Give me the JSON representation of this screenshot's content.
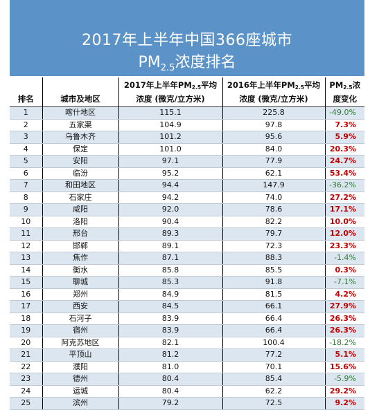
{
  "title": {
    "line1": "2017年上半年中国366座城市",
    "line2_prefix": "PM",
    "line2_sub": "2.5",
    "line2_suffix": "浓度排名"
  },
  "headers": {
    "rank": "排名",
    "city": "城市及地区",
    "col2017_line1_prefix": "2017年上半年PM",
    "col2017_line1_sub": "2.5",
    "col2017_line1_suffix": "平均",
    "col2017_line2": "浓度 (微克/立方米)",
    "col2016_line1_prefix": "2016年上半年PM",
    "col2016_line1_sub": "2.5",
    "col2016_line1_suffix": "平均",
    "col2016_line2": "浓度 (微克/立方米)",
    "change_line1_prefix": "PM",
    "change_line1_sub": "2.5",
    "change_line1_suffix": "浓",
    "change_line2": "度变化"
  },
  "rows": [
    {
      "rank": "1",
      "city": "喀什地区",
      "v2017": "115.1",
      "v2016": "225.8",
      "change": "-49.0%",
      "dir": "down"
    },
    {
      "rank": "2",
      "city": "五家渠",
      "v2017": "104.9",
      "v2016": "97.8",
      "change": "7.3%",
      "dir": "up"
    },
    {
      "rank": "3",
      "city": "乌鲁木齐",
      "v2017": "101.2",
      "v2016": "95.6",
      "change": "5.9%",
      "dir": "up"
    },
    {
      "rank": "4",
      "city": "保定",
      "v2017": "101.0",
      "v2016": "84.0",
      "change": "20.3%",
      "dir": "up"
    },
    {
      "rank": "5",
      "city": "安阳",
      "v2017": "97.1",
      "v2016": "77.9",
      "change": "24.7%",
      "dir": "up"
    },
    {
      "rank": "6",
      "city": "临汾",
      "v2017": "95.2",
      "v2016": "62.1",
      "change": "53.4%",
      "dir": "up"
    },
    {
      "rank": "7",
      "city": "和田地区",
      "v2017": "94.4",
      "v2016": "147.9",
      "change": "-36.2%",
      "dir": "down"
    },
    {
      "rank": "8",
      "city": "石家庄",
      "v2017": "94.2",
      "v2016": "74.0",
      "change": "27.2%",
      "dir": "up"
    },
    {
      "rank": "9",
      "city": "咸阳",
      "v2017": "92.0",
      "v2016": "78.6",
      "change": "17.1%",
      "dir": "up"
    },
    {
      "rank": "10",
      "city": "洛阳",
      "v2017": "90.4",
      "v2016": "82.2",
      "change": "10.0%",
      "dir": "up"
    },
    {
      "rank": "11",
      "city": "邢台",
      "v2017": "89.3",
      "v2016": "79.7",
      "change": "12.0%",
      "dir": "up"
    },
    {
      "rank": "12",
      "city": "邯郸",
      "v2017": "89.1",
      "v2016": "72.3",
      "change": "23.3%",
      "dir": "up"
    },
    {
      "rank": "13",
      "city": "焦作",
      "v2017": "87.1",
      "v2016": "88.3",
      "change": "-1.4%",
      "dir": "down"
    },
    {
      "rank": "14",
      "city": "衡水",
      "v2017": "85.8",
      "v2016": "85.5",
      "change": "0.3%",
      "dir": "up"
    },
    {
      "rank": "15",
      "city": "聊城",
      "v2017": "85.3",
      "v2016": "91.8",
      "change": "-7.1%",
      "dir": "down"
    },
    {
      "rank": "16",
      "city": "郑州",
      "v2017": "84.9",
      "v2016": "81.5",
      "change": "4.2%",
      "dir": "up"
    },
    {
      "rank": "17",
      "city": "西安",
      "v2017": "84.5",
      "v2016": "66.1",
      "change": "27.9%",
      "dir": "up"
    },
    {
      "rank": "18",
      "city": "石河子",
      "v2017": "83.9",
      "v2016": "66.4",
      "change": "26.3%",
      "dir": "up"
    },
    {
      "rank": "19",
      "city": "宿州",
      "v2017": "83.9",
      "v2016": "66.4",
      "change": "26.3%",
      "dir": "up"
    },
    {
      "rank": "20",
      "city": "阿克苏地区",
      "v2017": "82.1",
      "v2016": "100.4",
      "change": "-18.2%",
      "dir": "down"
    },
    {
      "rank": "21",
      "city": "平顶山",
      "v2017": "81.2",
      "v2016": "77.2",
      "change": "5.1%",
      "dir": "up"
    },
    {
      "rank": "22",
      "city": "濮阳",
      "v2017": "81.0",
      "v2016": "70.1",
      "change": "15.6%",
      "dir": "up"
    },
    {
      "rank": "23",
      "city": "德州",
      "v2017": "80.4",
      "v2016": "85.4",
      "change": "-5.9%",
      "dir": "down"
    },
    {
      "rank": "24",
      "city": "运城",
      "v2017": "80.4",
      "v2016": "62.2",
      "change": "29.2%",
      "dir": "up"
    },
    {
      "rank": "25",
      "city": "滨州",
      "v2017": "79.2",
      "v2016": "72.5",
      "change": "9.2%",
      "dir": "up"
    }
  ]
}
